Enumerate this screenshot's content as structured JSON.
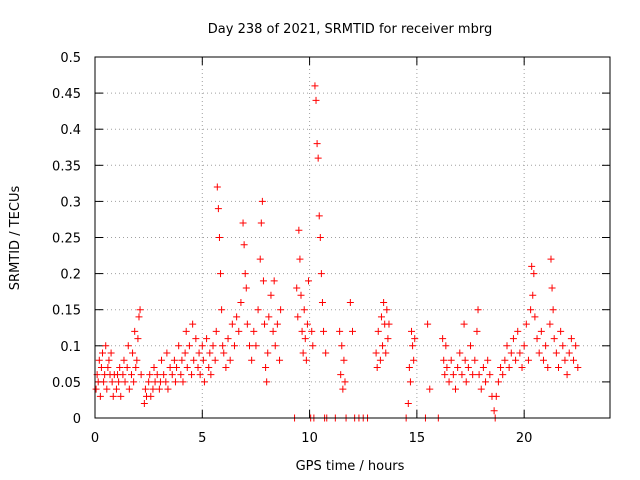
{
  "chart_data": {
    "type": "scatter",
    "title": "Day 238 of 2021, SRMTID for receiver mbrg",
    "xlabel": "GPS time / hours",
    "ylabel": "SRMTID / TECUs",
    "xlim": [
      0,
      24
    ],
    "ylim": [
      0,
      0.5
    ],
    "x_ticks": [
      0,
      5,
      10,
      15,
      20
    ],
    "y_ticks": [
      0,
      0.05,
      0.1,
      0.15,
      0.2,
      0.25,
      0.3,
      0.35,
      0.4,
      0.45,
      0.5
    ],
    "x_tick_labels": [
      "0",
      "5",
      "10",
      "15",
      "20"
    ],
    "y_tick_labels": [
      "0",
      "0.05",
      "0.1",
      "0.15",
      "0.2",
      "0.25",
      "0.3",
      "0.35",
      "0.4",
      "0.45",
      "0.5"
    ],
    "grid": true,
    "marker": "+",
    "color": "#ff0000",
    "series": [
      {
        "name": "SRMTID",
        "points": [
          [
            0.05,
            0.04
          ],
          [
            0.1,
            0.06
          ],
          [
            0.15,
            0.05
          ],
          [
            0.2,
            0.08
          ],
          [
            0.25,
            0.03
          ],
          [
            0.3,
            0.07
          ],
          [
            0.35,
            0.09
          ],
          [
            0.4,
            0.05
          ],
          [
            0.45,
            0.06
          ],
          [
            0.5,
            0.1
          ],
          [
            0.55,
            0.04
          ],
          [
            0.6,
            0.07
          ],
          [
            0.65,
            0.08
          ],
          [
            0.7,
            0.06
          ],
          [
            0.75,
            0.09
          ],
          [
            0.8,
            0.05
          ],
          [
            0.85,
            0.03
          ],
          [
            0.9,
            0.06
          ],
          [
            1.0,
            0.04
          ],
          [
            1.05,
            0.06
          ],
          [
            1.1,
            0.05
          ],
          [
            1.15,
            0.07
          ],
          [
            1.2,
            0.03
          ],
          [
            1.3,
            0.06
          ],
          [
            1.35,
            0.08
          ],
          [
            1.4,
            0.05
          ],
          [
            1.5,
            0.07
          ],
          [
            1.55,
            0.1
          ],
          [
            1.6,
            0.04
          ],
          [
            1.7,
            0.06
          ],
          [
            1.75,
            0.09
          ],
          [
            1.8,
            0.05
          ],
          [
            1.85,
            0.12
          ],
          [
            1.9,
            0.07
          ],
          [
            1.95,
            0.08
          ],
          [
            2.0,
            0.11
          ],
          [
            2.05,
            0.14
          ],
          [
            2.1,
            0.15
          ],
          [
            2.15,
            0.06
          ],
          [
            2.3,
            0.02
          ],
          [
            2.35,
            0.04
          ],
          [
            2.4,
            0.03
          ],
          [
            2.5,
            0.05
          ],
          [
            2.55,
            0.06
          ],
          [
            2.6,
            0.03
          ],
          [
            2.7,
            0.04
          ],
          [
            2.75,
            0.07
          ],
          [
            2.8,
            0.05
          ],
          [
            2.9,
            0.06
          ],
          [
            3.0,
            0.04
          ],
          [
            3.05,
            0.05
          ],
          [
            3.1,
            0.08
          ],
          [
            3.2,
            0.06
          ],
          [
            3.3,
            0.05
          ],
          [
            3.35,
            0.09
          ],
          [
            3.4,
            0.04
          ],
          [
            3.5,
            0.07
          ],
          [
            3.6,
            0.06
          ],
          [
            3.7,
            0.08
          ],
          [
            3.75,
            0.05
          ],
          [
            3.8,
            0.07
          ],
          [
            3.9,
            0.1
          ],
          [
            4.0,
            0.06
          ],
          [
            4.05,
            0.08
          ],
          [
            4.1,
            0.05
          ],
          [
            4.2,
            0.09
          ],
          [
            4.25,
            0.12
          ],
          [
            4.3,
            0.07
          ],
          [
            4.4,
            0.1
          ],
          [
            4.5,
            0.06
          ],
          [
            4.55,
            0.13
          ],
          [
            4.6,
            0.08
          ],
          [
            4.7,
            0.11
          ],
          [
            4.8,
            0.07
          ],
          [
            4.85,
            0.09
          ],
          [
            4.9,
            0.06
          ],
          [
            5.0,
            0.1
          ],
          [
            5.05,
            0.08
          ],
          [
            5.1,
            0.05
          ],
          [
            5.2,
            0.11
          ],
          [
            5.3,
            0.07
          ],
          [
            5.35,
            0.09
          ],
          [
            5.4,
            0.06
          ],
          [
            5.5,
            0.1
          ],
          [
            5.6,
            0.08
          ],
          [
            5.65,
            0.12
          ],
          [
            5.7,
            0.32
          ],
          [
            5.75,
            0.29
          ],
          [
            5.8,
            0.25
          ],
          [
            5.85,
            0.2
          ],
          [
            5.9,
            0.15
          ],
          [
            5.95,
            0.1
          ],
          [
            6.0,
            0.09
          ],
          [
            6.1,
            0.07
          ],
          [
            6.2,
            0.11
          ],
          [
            6.3,
            0.08
          ],
          [
            6.4,
            0.13
          ],
          [
            6.5,
            0.1
          ],
          [
            6.6,
            0.14
          ],
          [
            6.7,
            0.12
          ],
          [
            6.8,
            0.16
          ],
          [
            6.9,
            0.27
          ],
          [
            6.95,
            0.24
          ],
          [
            7.0,
            0.2
          ],
          [
            7.05,
            0.18
          ],
          [
            7.1,
            0.13
          ],
          [
            7.2,
            0.1
          ],
          [
            7.3,
            0.08
          ],
          [
            7.4,
            0.12
          ],
          [
            7.5,
            0.1
          ],
          [
            7.6,
            0.15
          ],
          [
            7.7,
            0.22
          ],
          [
            7.75,
            0.27
          ],
          [
            7.8,
            0.3
          ],
          [
            7.85,
            0.19
          ],
          [
            7.9,
            0.13
          ],
          [
            7.95,
            0.07
          ],
          [
            8.0,
            0.05
          ],
          [
            8.05,
            0.09
          ],
          [
            8.1,
            0.14
          ],
          [
            8.2,
            0.17
          ],
          [
            8.3,
            0.12
          ],
          [
            8.35,
            0.19
          ],
          [
            8.4,
            0.1
          ],
          [
            8.5,
            0.13
          ],
          [
            8.6,
            0.08
          ],
          [
            8.65,
            0.15
          ],
          [
            9.3,
            0.0
          ],
          [
            9.4,
            0.18
          ],
          [
            9.45,
            0.14
          ],
          [
            9.5,
            0.26
          ],
          [
            9.55,
            0.22
          ],
          [
            9.6,
            0.17
          ],
          [
            9.65,
            0.12
          ],
          [
            9.7,
            0.09
          ],
          [
            9.75,
            0.15
          ],
          [
            9.8,
            0.11
          ],
          [
            9.85,
            0.08
          ],
          [
            9.9,
            0.13
          ],
          [
            9.95,
            0.19
          ],
          [
            10.05,
            0.0
          ],
          [
            10.1,
            0.12
          ],
          [
            10.15,
            0.1
          ],
          [
            10.2,
            0.0
          ],
          [
            10.25,
            0.46
          ],
          [
            10.3,
            0.44
          ],
          [
            10.35,
            0.38
          ],
          [
            10.4,
            0.36
          ],
          [
            10.45,
            0.28
          ],
          [
            10.5,
            0.25
          ],
          [
            10.55,
            0.2
          ],
          [
            10.6,
            0.16
          ],
          [
            10.65,
            0.12
          ],
          [
            10.7,
            0.0
          ],
          [
            10.75,
            0.09
          ],
          [
            10.8,
            0.0
          ],
          [
            11.2,
            0.0
          ],
          [
            11.4,
            0.12
          ],
          [
            11.45,
            0.06
          ],
          [
            11.5,
            0.1
          ],
          [
            11.55,
            0.04
          ],
          [
            11.6,
            0.08
          ],
          [
            11.65,
            0.05
          ],
          [
            11.7,
            0.0
          ],
          [
            11.9,
            0.16
          ],
          [
            12.0,
            0.12
          ],
          [
            12.1,
            0.0
          ],
          [
            12.3,
            0.0
          ],
          [
            12.5,
            0.0
          ],
          [
            12.7,
            0.0
          ],
          [
            13.1,
            0.09
          ],
          [
            13.15,
            0.07
          ],
          [
            13.2,
            0.12
          ],
          [
            13.3,
            0.08
          ],
          [
            13.35,
            0.14
          ],
          [
            13.4,
            0.1
          ],
          [
            13.45,
            0.16
          ],
          [
            13.5,
            0.13
          ],
          [
            13.55,
            0.09
          ],
          [
            13.6,
            0.15
          ],
          [
            13.65,
            0.11
          ],
          [
            13.7,
            0.13
          ],
          [
            14.5,
            0.0
          ],
          [
            14.6,
            0.02
          ],
          [
            14.65,
            0.07
          ],
          [
            14.7,
            0.05
          ],
          [
            14.75,
            0.12
          ],
          [
            14.8,
            0.1
          ],
          [
            14.85,
            0.08
          ],
          [
            14.9,
            0.11
          ],
          [
            15.4,
            0.0
          ],
          [
            15.5,
            0.13
          ],
          [
            15.6,
            0.04
          ],
          [
            16.0,
            0.0
          ],
          [
            16.2,
            0.11
          ],
          [
            16.25,
            0.08
          ],
          [
            16.3,
            0.06
          ],
          [
            16.35,
            0.1
          ],
          [
            16.4,
            0.07
          ],
          [
            16.5,
            0.05
          ],
          [
            16.6,
            0.08
          ],
          [
            16.7,
            0.06
          ],
          [
            16.8,
            0.04
          ],
          [
            16.9,
            0.07
          ],
          [
            17.0,
            0.09
          ],
          [
            17.1,
            0.06
          ],
          [
            17.2,
            0.13
          ],
          [
            17.25,
            0.08
          ],
          [
            17.3,
            0.05
          ],
          [
            17.4,
            0.07
          ],
          [
            17.5,
            0.1
          ],
          [
            17.6,
            0.06
          ],
          [
            17.7,
            0.08
          ],
          [
            17.8,
            0.12
          ],
          [
            17.85,
            0.15
          ],
          [
            17.9,
            0.06
          ],
          [
            18.0,
            0.04
          ],
          [
            18.1,
            0.07
          ],
          [
            18.2,
            0.05
          ],
          [
            18.3,
            0.08
          ],
          [
            18.4,
            0.06
          ],
          [
            18.5,
            0.03
          ],
          [
            18.6,
            0.01
          ],
          [
            18.65,
            0.0
          ],
          [
            18.7,
            0.03
          ],
          [
            18.8,
            0.05
          ],
          [
            18.9,
            0.07
          ],
          [
            19.0,
            0.06
          ],
          [
            19.1,
            0.08
          ],
          [
            19.2,
            0.1
          ],
          [
            19.3,
            0.07
          ],
          [
            19.4,
            0.09
          ],
          [
            19.5,
            0.11
          ],
          [
            19.6,
            0.08
          ],
          [
            19.7,
            0.12
          ],
          [
            19.8,
            0.09
          ],
          [
            19.9,
            0.07
          ],
          [
            20.0,
            0.1
          ],
          [
            20.1,
            0.13
          ],
          [
            20.2,
            0.08
          ],
          [
            20.3,
            0.15
          ],
          [
            20.35,
            0.21
          ],
          [
            20.4,
            0.17
          ],
          [
            20.45,
            0.2
          ],
          [
            20.5,
            0.14
          ],
          [
            20.6,
            0.11
          ],
          [
            20.7,
            0.09
          ],
          [
            20.8,
            0.12
          ],
          [
            20.9,
            0.08
          ],
          [
            21.0,
            0.1
          ],
          [
            21.1,
            0.07
          ],
          [
            21.2,
            0.13
          ],
          [
            21.25,
            0.22
          ],
          [
            21.3,
            0.18
          ],
          [
            21.35,
            0.15
          ],
          [
            21.4,
            0.11
          ],
          [
            21.5,
            0.09
          ],
          [
            21.6,
            0.07
          ],
          [
            21.7,
            0.12
          ],
          [
            21.8,
            0.1
          ],
          [
            21.9,
            0.08
          ],
          [
            22.0,
            0.06
          ],
          [
            22.1,
            0.09
          ],
          [
            22.2,
            0.11
          ],
          [
            22.3,
            0.08
          ],
          [
            22.4,
            0.1
          ],
          [
            22.5,
            0.07
          ]
        ]
      }
    ]
  }
}
